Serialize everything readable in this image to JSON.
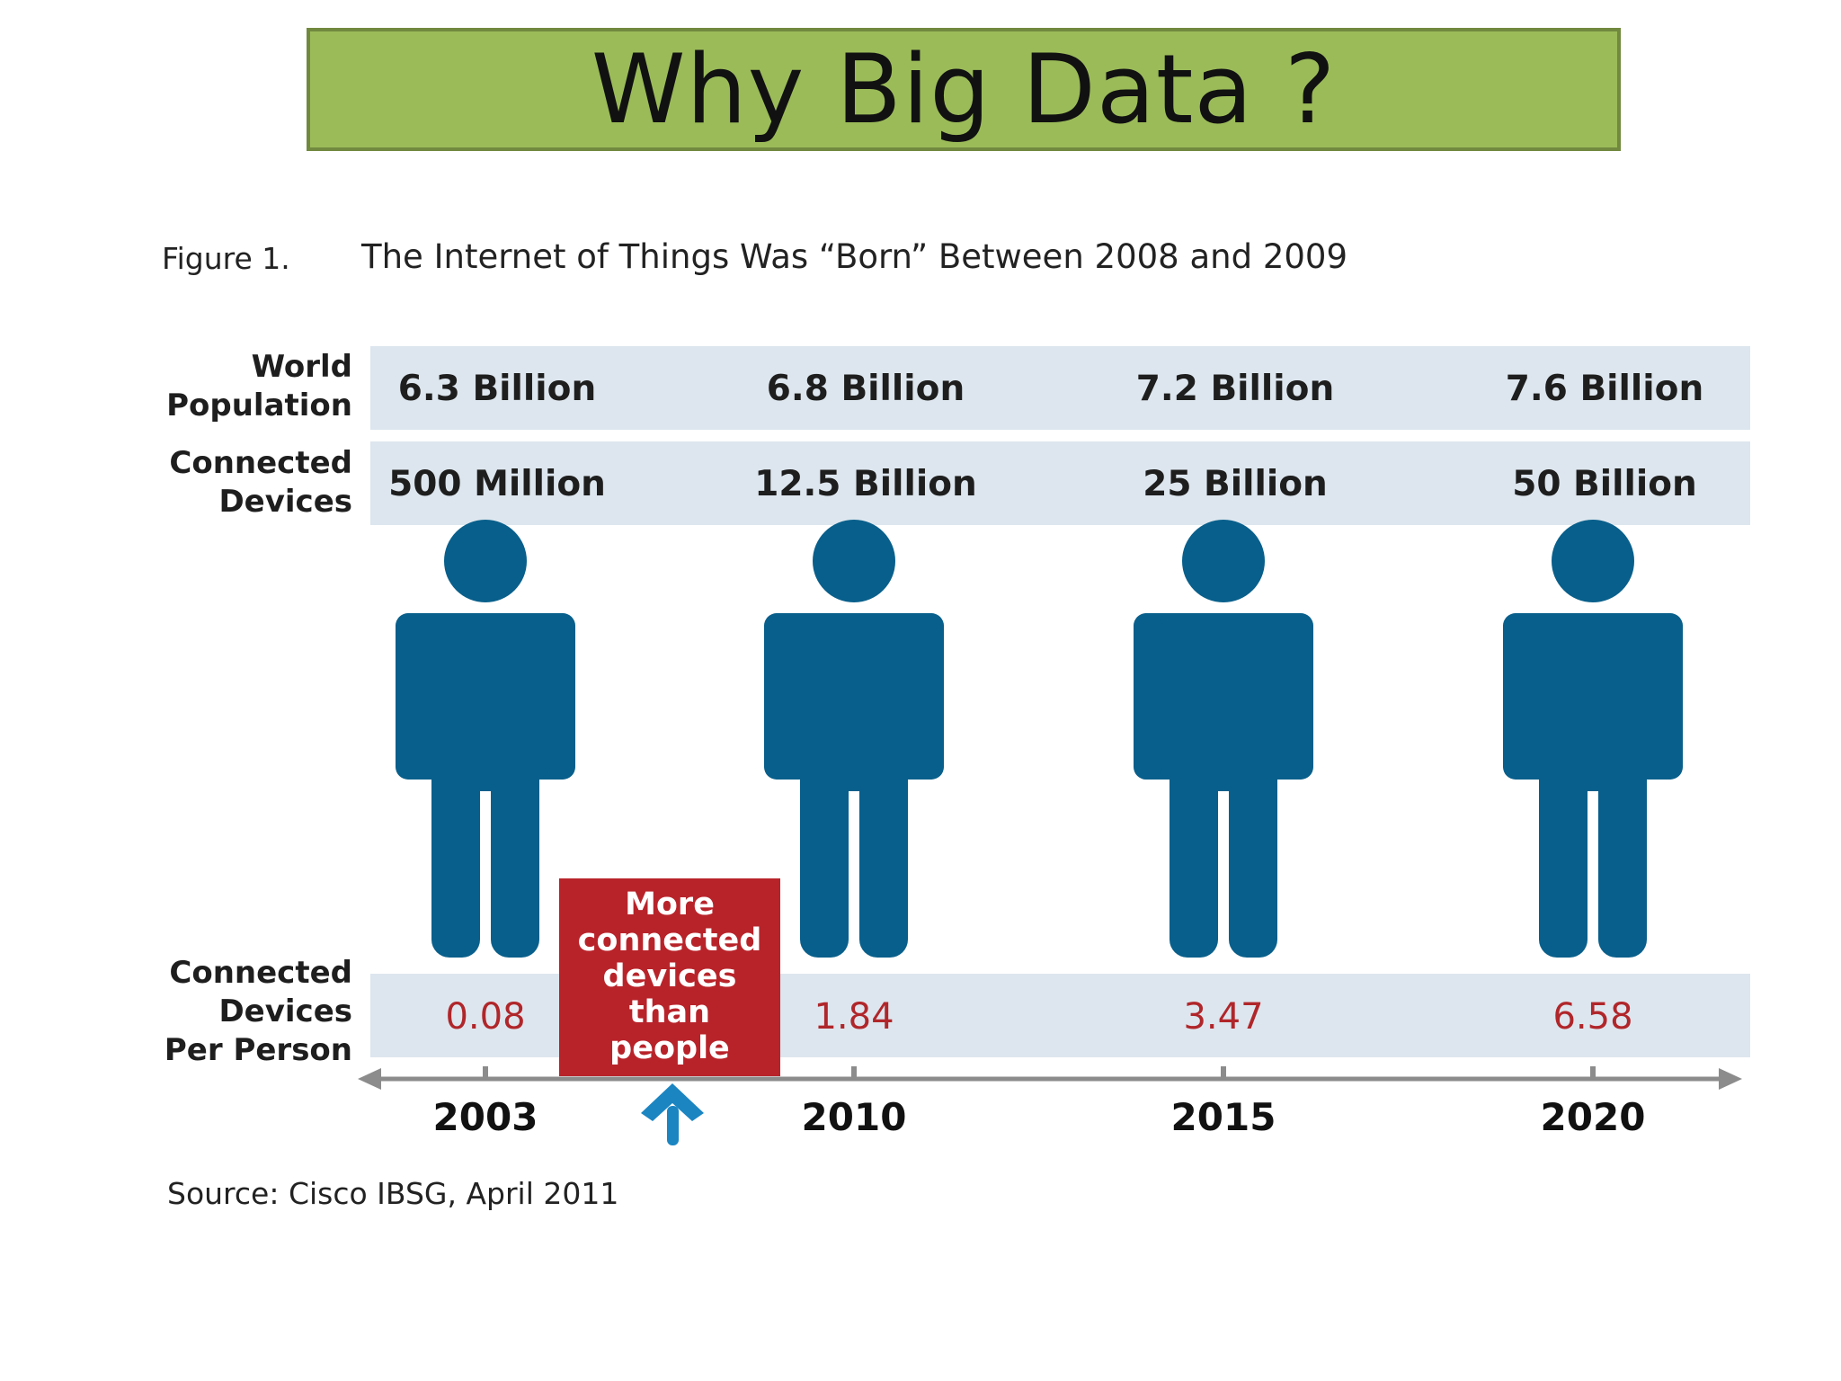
{
  "slide": {
    "title": "Why Big Data ?"
  },
  "figure": {
    "label": "Figure 1.",
    "caption": "The Internet of Things Was “Born” Between 2008 and 2009",
    "source": "Source: Cisco IBSG, April 2011"
  },
  "colors": {
    "title_bg": "#9bbb59",
    "title_border": "#71893f",
    "band": "#dde6ee",
    "person": "#085f8b",
    "value_red": "#b0262a",
    "callout": "#b8232a",
    "arrow_blue": "#1b85c2",
    "axis": "#8c8c8c"
  },
  "chart_data": {
    "type": "table",
    "title": "The Internet of Things Was “Born” Between 2008 and 2009",
    "row_labels": {
      "population": [
        "World",
        "Population"
      ],
      "devices": [
        "Connected",
        "Devices"
      ],
      "per_person": [
        "Connected",
        "Devices",
        "Per Person"
      ]
    },
    "years": [
      "2003",
      "2010",
      "2015",
      "2020"
    ],
    "world_population": [
      "6.3 Billion",
      "6.8 Billion",
      "7.2 Billion",
      "7.6 Billion"
    ],
    "world_population_billions": [
      6.3,
      6.8,
      7.2,
      7.6
    ],
    "connected_devices": [
      "500 Million",
      "12.5 Billion",
      "25 Billion",
      "50 Billion"
    ],
    "connected_devices_billions": [
      0.5,
      12.5,
      25,
      50
    ],
    "devices_per_person": [
      "0.08",
      "1.84",
      "3.47",
      "6.58"
    ],
    "devices_per_person_values": [
      0.08,
      1.84,
      3.47,
      6.58
    ],
    "callout": {
      "lines": [
        "More",
        "connected",
        "devices",
        "than",
        "people"
      ],
      "between_years": [
        "2003",
        "2010"
      ]
    },
    "icons": [
      "person-icon",
      "up-arrow-icon"
    ]
  }
}
